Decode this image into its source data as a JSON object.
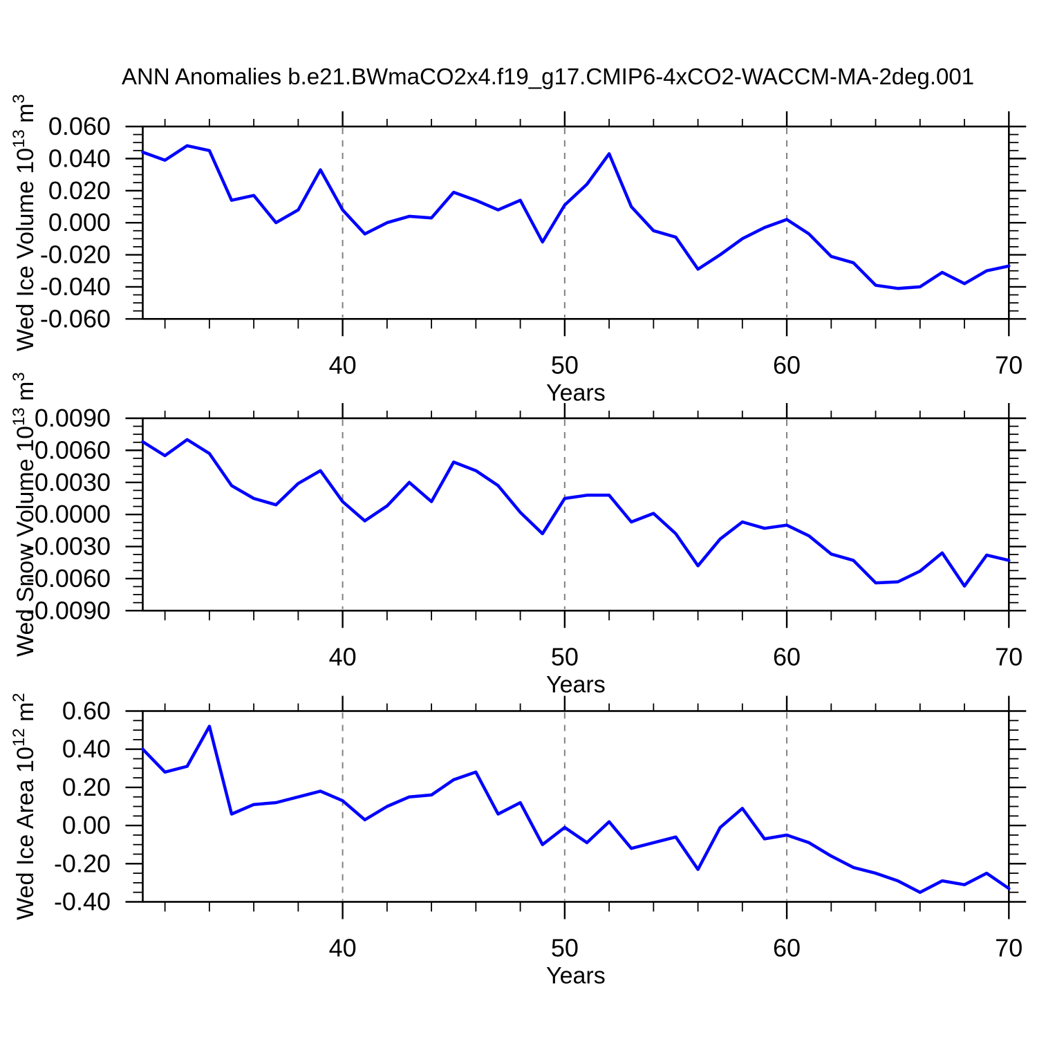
{
  "title": "ANN Anomalies b.e21.BWmaCO2x4.f19_g17.CMIP6-4xCO2-WACCM-MA-2deg.001",
  "colors": {
    "line": "#0000ff",
    "grid": "#808080",
    "axis": "#000000",
    "text": "#000000",
    "background": "#ffffff"
  },
  "chart_data": [
    {
      "type": "line",
      "ylabel": "Wed Ice Volume 10^13 m^3",
      "ylabel_rich": [
        {
          "t": "Wed Ice Volume 10"
        },
        {
          "t": "13",
          "sup": true
        },
        {
          "t": " m"
        },
        {
          "t": "3",
          "sup": true
        }
      ],
      "xlabel": "Years",
      "xlim": [
        31,
        70
      ],
      "ylim": [
        -0.06,
        0.06
      ],
      "x_major_ticks": [
        {
          "v": 40,
          "label": "40"
        },
        {
          "v": 50,
          "label": "50"
        },
        {
          "v": 60,
          "label": "60"
        },
        {
          "v": 70,
          "label": "70"
        }
      ],
      "x_minor_step": 2,
      "x_gridlines": [
        40,
        50,
        60
      ],
      "yticks": [
        {
          "v": 0.06,
          "label": "0.060"
        },
        {
          "v": 0.04,
          "label": "0.040"
        },
        {
          "v": 0.02,
          "label": "0.020"
        },
        {
          "v": 0.0,
          "label": "0.000"
        },
        {
          "v": -0.02,
          "label": "-0.020"
        },
        {
          "v": -0.04,
          "label": "-0.040"
        },
        {
          "v": -0.06,
          "label": "-0.060"
        }
      ],
      "y_minor_step": 0.005,
      "grid": "x-dashed",
      "legend": "none",
      "series": {
        "name": "ice-volume-anomaly",
        "x": [
          31,
          32,
          33,
          34,
          35,
          36,
          37,
          38,
          39,
          40,
          41,
          42,
          43,
          44,
          45,
          46,
          47,
          48,
          49,
          50,
          51,
          52,
          53,
          54,
          55,
          56,
          57,
          58,
          59,
          60,
          61,
          62,
          63,
          64,
          65,
          66,
          67,
          68,
          69,
          70
        ],
        "y": [
          0.044,
          0.039,
          0.048,
          0.045,
          0.014,
          0.017,
          0.0,
          0.008,
          0.033,
          0.008,
          -0.007,
          0.0,
          0.004,
          0.003,
          0.019,
          0.014,
          0.008,
          0.014,
          -0.012,
          0.011,
          0.024,
          0.043,
          0.01,
          -0.005,
          -0.009,
          -0.029,
          -0.02,
          -0.01,
          -0.003,
          0.002,
          -0.007,
          -0.021,
          -0.025,
          -0.039,
          -0.041,
          -0.04,
          -0.031,
          -0.038,
          -0.03,
          -0.027
        ]
      }
    },
    {
      "type": "line",
      "ylabel": "Wed Snow Volume 10^13 m^3",
      "ylabel_rich": [
        {
          "t": "Wed Snow Volume 10"
        },
        {
          "t": "13",
          "sup": true
        },
        {
          "t": " m"
        },
        {
          "t": "3",
          "sup": true
        }
      ],
      "xlabel": "Years",
      "xlim": [
        31,
        70
      ],
      "ylim": [
        -0.009,
        0.009
      ],
      "x_major_ticks": [
        {
          "v": 40,
          "label": "40"
        },
        {
          "v": 50,
          "label": "50"
        },
        {
          "v": 60,
          "label": "60"
        },
        {
          "v": 70,
          "label": "70"
        }
      ],
      "x_minor_step": 2,
      "x_gridlines": [
        40,
        50,
        60
      ],
      "yticks": [
        {
          "v": 0.009,
          "label": "0.0090"
        },
        {
          "v": 0.006,
          "label": "0.0060"
        },
        {
          "v": 0.003,
          "label": "0.0030"
        },
        {
          "v": 0.0,
          "label": "0.0000"
        },
        {
          "v": -0.003,
          "label": "-0.0030"
        },
        {
          "v": -0.006,
          "label": "-0.0060"
        },
        {
          "v": -0.009,
          "label": "-0.0090"
        }
      ],
      "y_minor_step": 0.00075,
      "grid": "x-dashed",
      "legend": "none",
      "series": {
        "name": "snow-volume-anomaly",
        "x": [
          31,
          32,
          33,
          34,
          35,
          36,
          37,
          38,
          39,
          40,
          41,
          42,
          43,
          44,
          45,
          46,
          47,
          48,
          49,
          50,
          51,
          52,
          53,
          54,
          55,
          56,
          57,
          58,
          59,
          60,
          61,
          62,
          63,
          64,
          65,
          66,
          67,
          68,
          69,
          70
        ],
        "y": [
          0.0068,
          0.0055,
          0.007,
          0.0057,
          0.0027,
          0.0015,
          0.0009,
          0.0029,
          0.0041,
          0.0012,
          -0.0006,
          0.0008,
          0.003,
          0.0012,
          0.0049,
          0.0041,
          0.0027,
          0.0002,
          -0.0018,
          0.0015,
          0.0018,
          0.0018,
          -0.0007,
          0.0001,
          -0.0018,
          -0.0048,
          -0.0023,
          -0.0007,
          -0.0013,
          -0.001,
          -0.002,
          -0.0037,
          -0.0043,
          -0.0064,
          -0.0063,
          -0.0053,
          -0.0036,
          -0.0067,
          -0.0038,
          -0.0043
        ]
      }
    },
    {
      "type": "line",
      "ylabel": "Wed Ice Area 10^12 m^2",
      "ylabel_rich": [
        {
          "t": "Wed Ice Area 10"
        },
        {
          "t": "12",
          "sup": true
        },
        {
          "t": " m"
        },
        {
          "t": "2",
          "sup": true
        }
      ],
      "xlabel": "Years",
      "xlim": [
        31,
        70
      ],
      "ylim": [
        -0.4,
        0.6
      ],
      "x_major_ticks": [
        {
          "v": 40,
          "label": "40"
        },
        {
          "v": 50,
          "label": "50"
        },
        {
          "v": 60,
          "label": "60"
        },
        {
          "v": 70,
          "label": "70"
        }
      ],
      "x_minor_step": 2,
      "x_gridlines": [
        40,
        50,
        60
      ],
      "yticks": [
        {
          "v": 0.6,
          "label": "0.60"
        },
        {
          "v": 0.4,
          "label": "0.40"
        },
        {
          "v": 0.2,
          "label": "0.20"
        },
        {
          "v": 0.0,
          "label": "0.00"
        },
        {
          "v": -0.2,
          "label": "-0.20"
        },
        {
          "v": -0.4,
          "label": "-0.40"
        }
      ],
      "y_minor_step": 0.05,
      "grid": "x-dashed",
      "legend": "none",
      "series": {
        "name": "ice-area-anomaly",
        "x": [
          31,
          32,
          33,
          34,
          35,
          36,
          37,
          38,
          39,
          40,
          41,
          42,
          43,
          44,
          45,
          46,
          47,
          48,
          49,
          50,
          51,
          52,
          53,
          54,
          55,
          56,
          57,
          58,
          59,
          60,
          61,
          62,
          63,
          64,
          65,
          66,
          67,
          68,
          69,
          70
        ],
        "y": [
          0.4,
          0.28,
          0.31,
          0.52,
          0.06,
          0.11,
          0.12,
          0.15,
          0.18,
          0.13,
          0.03,
          0.1,
          0.15,
          0.16,
          0.24,
          0.28,
          0.06,
          0.12,
          -0.1,
          -0.01,
          -0.09,
          0.02,
          -0.12,
          -0.09,
          -0.06,
          -0.23,
          -0.01,
          0.09,
          -0.07,
          -0.05,
          -0.09,
          -0.16,
          -0.22,
          -0.25,
          -0.29,
          -0.35,
          -0.29,
          -0.31,
          -0.25,
          -0.33
        ]
      }
    }
  ]
}
